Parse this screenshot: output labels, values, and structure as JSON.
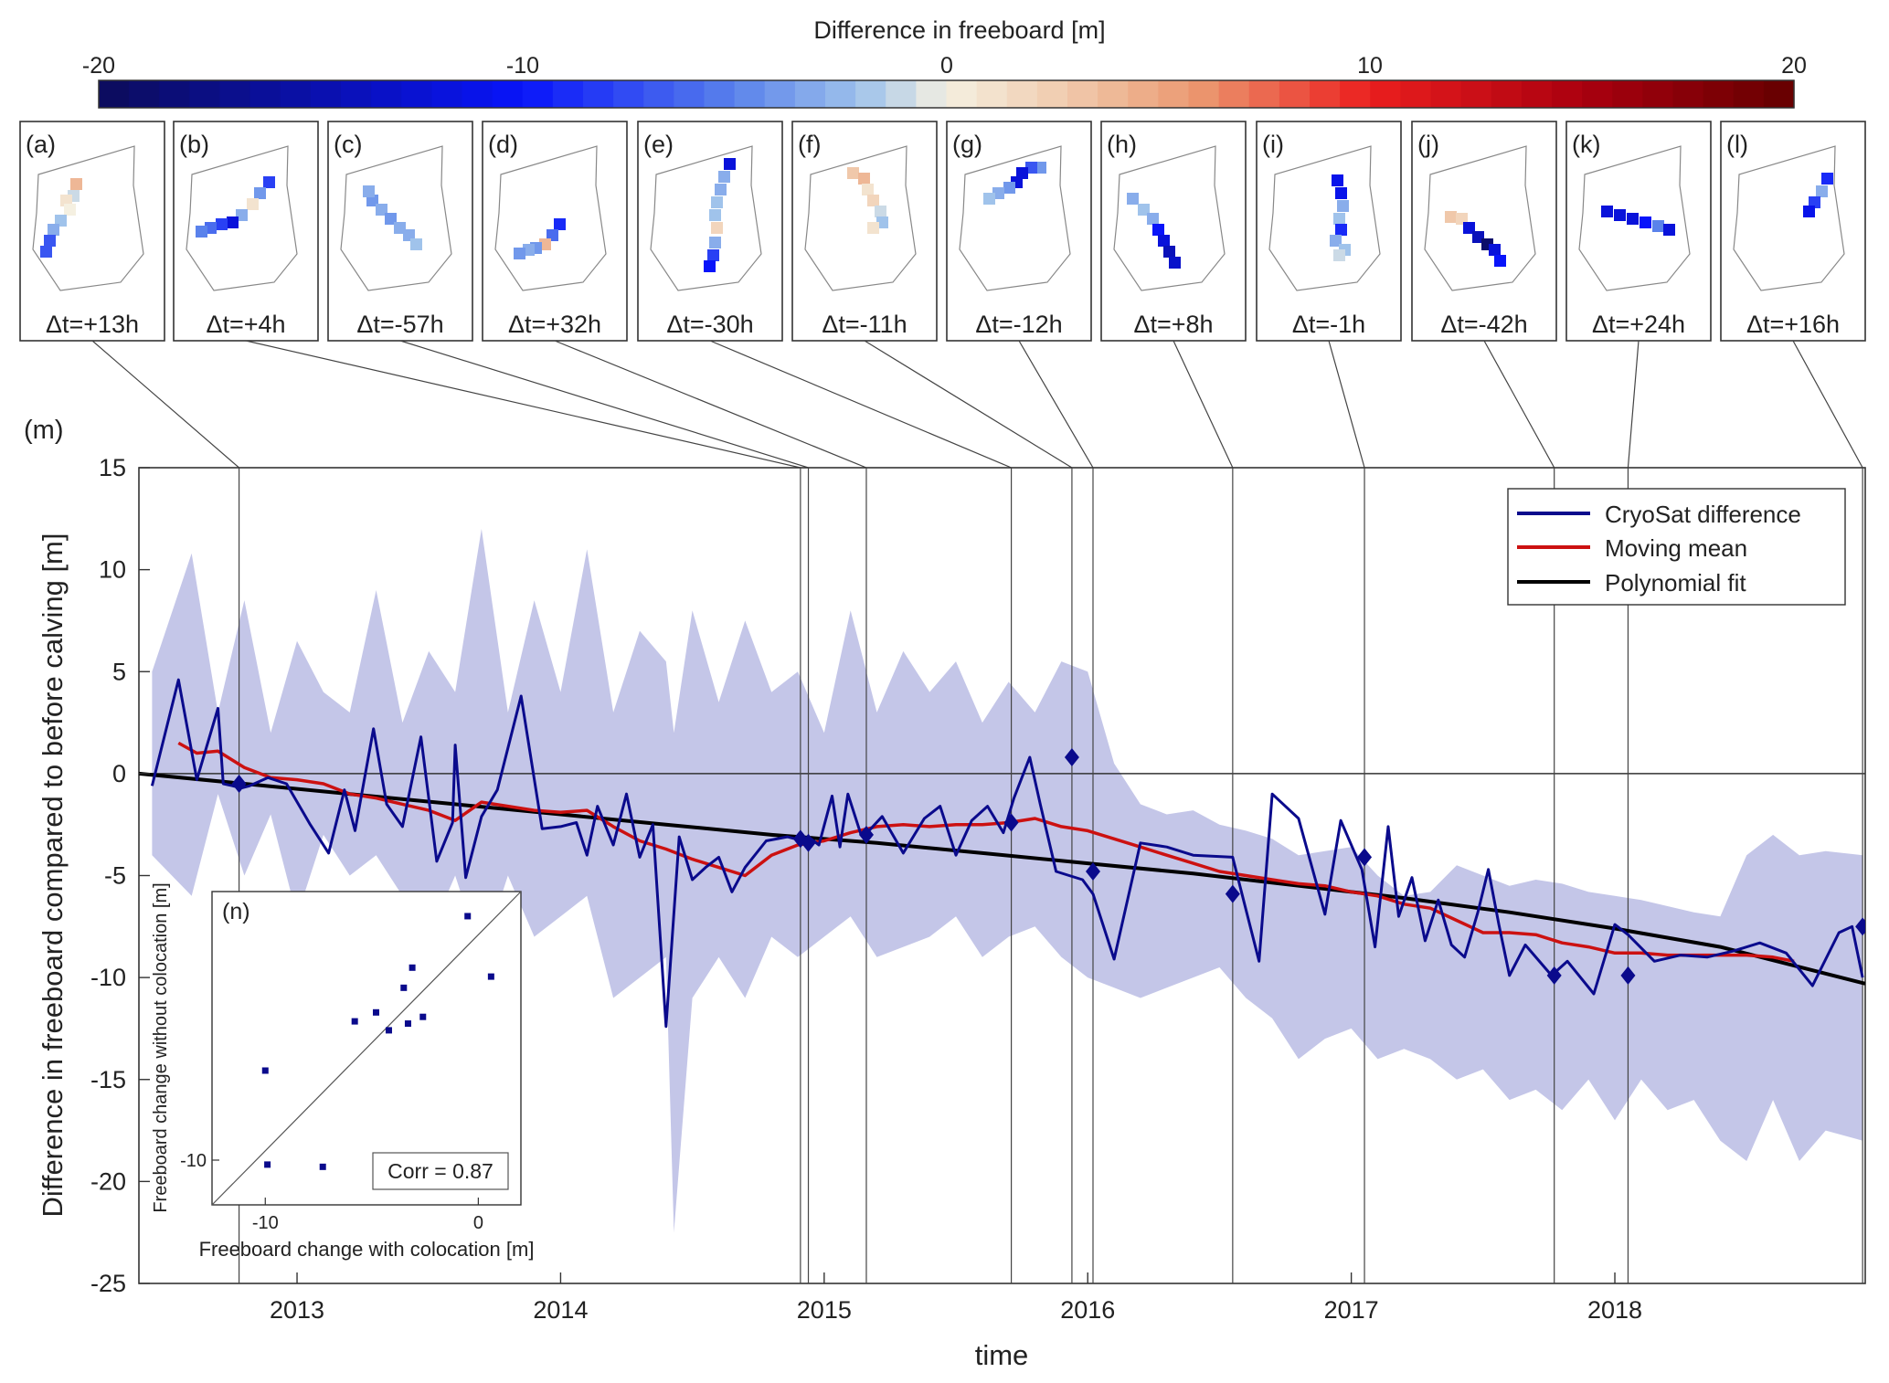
{
  "colorbar": {
    "title": "Difference in freeboard  [m]",
    "ticks": [
      "-20",
      "-10",
      "0",
      "10",
      "20"
    ],
    "range": [
      -20,
      20
    ]
  },
  "panels": [
    {
      "label": "(a)",
      "dt": "Δt=+13h"
    },
    {
      "label": "(b)",
      "dt": "Δt=+4h"
    },
    {
      "label": "(c)",
      "dt": "Δt=-57h"
    },
    {
      "label": "(d)",
      "dt": "Δt=+32h"
    },
    {
      "label": "(e)",
      "dt": "Δt=-30h"
    },
    {
      "label": "(f)",
      "dt": "Δt=-11h"
    },
    {
      "label": "(g)",
      "dt": "Δt=-12h"
    },
    {
      "label": "(h)",
      "dt": "Δt=+8h"
    },
    {
      "label": "(i)",
      "dt": "Δt=-1h"
    },
    {
      "label": "(j)",
      "dt": "Δt=-42h"
    },
    {
      "label": "(k)",
      "dt": "Δt=+24h"
    },
    {
      "label": "(l)",
      "dt": "Δt=+16h"
    }
  ],
  "chart_data": [
    {
      "type": "line",
      "panel_label": "(m)",
      "xlabel": "time",
      "ylabel": "Difference in freeboard compared to before calving [m]",
      "xlim": [
        2012.4,
        2018.95
      ],
      "ylim": [
        -25,
        15
      ],
      "xticks": [
        "2013",
        "2014",
        "2015",
        "2016",
        "2017",
        "2018"
      ],
      "yticks": [
        "15",
        "10",
        "5",
        "0",
        "-5",
        "-10",
        "-15",
        "-20",
        "-25"
      ],
      "legend_position": "top-right",
      "colors": {
        "cryosat": "#0a0a8c",
        "moving_mean": "#cc1111",
        "poly": "#000000",
        "band": "#c4c6e8"
      },
      "series": [
        {
          "name": "CryoSat difference",
          "x": [
            2012.45,
            2012.55,
            2012.62,
            2012.7,
            2012.72,
            2012.79,
            2012.82,
            2012.89,
            2012.96,
            2013.05,
            2013.12,
            2013.18,
            2013.22,
            2013.29,
            2013.34,
            2013.4,
            2013.47,
            2013.53,
            2013.59,
            2013.6,
            2013.64,
            2013.7,
            2013.76,
            2013.85,
            2013.93,
            2014.0,
            2014.06,
            2014.1,
            2014.14,
            2014.2,
            2014.25,
            2014.3,
            2014.35,
            2014.4,
            2014.45,
            2014.5,
            2014.55,
            2014.6,
            2014.65,
            2014.7,
            2014.78,
            2014.86,
            2014.92,
            2014.95,
            2014.98,
            2015.03,
            2015.06,
            2015.09,
            2015.14,
            2015.17,
            2015.22,
            2015.3,
            2015.38,
            2015.44,
            2015.5,
            2015.56,
            2015.62,
            2015.68,
            2015.72,
            2015.78,
            2015.82,
            2015.88,
            2015.93,
            2015.98,
            2016.02,
            2016.1,
            2016.2,
            2016.3,
            2016.4,
            2016.55,
            2016.65,
            2016.7,
            2016.8,
            2016.9,
            2016.96,
            2017.04,
            2017.09,
            2017.14,
            2017.18,
            2017.23,
            2017.28,
            2017.33,
            2017.38,
            2017.43,
            2017.48,
            2017.52,
            2017.56,
            2017.6,
            2017.66,
            2017.76,
            2017.82,
            2017.92,
            2018.0,
            2018.05,
            2018.15,
            2018.25,
            2018.35,
            2018.45,
            2018.55,
            2018.65,
            2018.75,
            2018.85,
            2018.9,
            2018.94
          ],
          "y": [
            -0.6,
            4.6,
            -0.3,
            3.2,
            -0.5,
            -0.7,
            -0.6,
            -0.2,
            -0.5,
            -2.5,
            -3.9,
            -0.8,
            -2.8,
            2.2,
            -1.5,
            -2.6,
            1.8,
            -4.3,
            -2.4,
            1.4,
            -5.1,
            -2.1,
            -0.8,
            3.8,
            -2.7,
            -2.6,
            -2.4,
            -4.0,
            -1.6,
            -3.5,
            -1.0,
            -4.1,
            -2.5,
            -12.4,
            -3.1,
            -5.2,
            -4.6,
            -4.1,
            -5.8,
            -4.6,
            -3.3,
            -3.1,
            -3.3,
            -3.2,
            -3.5,
            -1.1,
            -3.6,
            -1.0,
            -3.0,
            -2.8,
            -2.1,
            -3.9,
            -2.2,
            -1.6,
            -4.0,
            -2.3,
            -1.6,
            -2.9,
            -1.2,
            0.8,
            -1.5,
            -4.8,
            -5.0,
            -5.2,
            -5.9,
            -9.1,
            -3.4,
            -3.6,
            -4.0,
            -4.1,
            -9.2,
            -1.0,
            -2.2,
            -6.9,
            -2.3,
            -4.7,
            -8.5,
            -2.6,
            -7.0,
            -5.1,
            -8.2,
            -6.2,
            -8.4,
            -9.0,
            -6.8,
            -4.7,
            -7.4,
            -9.9,
            -8.4,
            -9.9,
            -9.2,
            -10.8,
            -7.4,
            -7.9,
            -9.2,
            -8.9,
            -9.0,
            -8.7,
            -8.3,
            -8.8,
            -10.4,
            -7.8,
            -7.5,
            -10.0
          ]
        },
        {
          "name": "Moving mean",
          "x": [
            2012.55,
            2012.62,
            2012.7,
            2012.8,
            2012.9,
            2013.0,
            2013.1,
            2013.2,
            2013.3,
            2013.4,
            2013.5,
            2013.6,
            2013.7,
            2013.8,
            2013.9,
            2014.0,
            2014.1,
            2014.2,
            2014.3,
            2014.4,
            2014.5,
            2014.6,
            2014.7,
            2014.8,
            2014.9,
            2015.0,
            2015.1,
            2015.2,
            2015.3,
            2015.4,
            2015.5,
            2015.6,
            2015.7,
            2015.8,
            2015.9,
            2016.0,
            2016.1,
            2016.2,
            2016.3,
            2016.4,
            2016.5,
            2016.6,
            2016.7,
            2016.8,
            2016.9,
            2017.0,
            2017.1,
            2017.2,
            2017.3,
            2017.4,
            2017.5,
            2017.6,
            2017.7,
            2017.8,
            2017.9,
            2018.0,
            2018.1,
            2018.2,
            2018.3,
            2018.4,
            2018.5,
            2018.6,
            2018.68
          ],
          "y": [
            1.5,
            1.0,
            1.1,
            0.3,
            -0.2,
            -0.3,
            -0.5,
            -1.0,
            -1.2,
            -1.5,
            -1.8,
            -2.3,
            -1.4,
            -1.6,
            -1.8,
            -1.9,
            -1.8,
            -2.6,
            -3.3,
            -3.7,
            -4.2,
            -4.6,
            -5.0,
            -4.0,
            -3.5,
            -3.3,
            -2.9,
            -2.6,
            -2.5,
            -2.6,
            -2.5,
            -2.5,
            -2.4,
            -2.2,
            -2.6,
            -2.8,
            -3.2,
            -3.6,
            -4.0,
            -4.4,
            -4.8,
            -5.0,
            -5.2,
            -5.4,
            -5.5,
            -5.8,
            -6.0,
            -6.4,
            -6.6,
            -7.2,
            -7.8,
            -7.8,
            -7.9,
            -8.3,
            -8.5,
            -8.8,
            -8.8,
            -8.9,
            -8.9,
            -8.9,
            -8.9,
            -9.0,
            -9.2
          ]
        },
        {
          "name": "Polynomial fit",
          "x": [
            2012.4,
            2012.8,
            2013.2,
            2013.6,
            2014.0,
            2014.4,
            2014.8,
            2015.2,
            2015.6,
            2016.0,
            2016.4,
            2016.8,
            2017.2,
            2017.6,
            2018.0,
            2018.4,
            2018.95
          ],
          "y": [
            0.0,
            -0.5,
            -1.0,
            -1.5,
            -2.0,
            -2.5,
            -3.0,
            -3.4,
            -3.9,
            -4.4,
            -4.9,
            -5.5,
            -6.1,
            -6.8,
            -7.6,
            -8.5,
            -10.3
          ]
        }
      ],
      "band": {
        "x": [
          2012.45,
          2012.6,
          2012.7,
          2012.8,
          2012.9,
          2013.0,
          2013.1,
          2013.2,
          2013.3,
          2013.4,
          2013.5,
          2013.6,
          2013.7,
          2013.8,
          2013.9,
          2014.0,
          2014.1,
          2014.2,
          2014.3,
          2014.4,
          2014.43,
          2014.5,
          2014.6,
          2014.7,
          2014.8,
          2014.9,
          2015.0,
          2015.1,
          2015.2,
          2015.3,
          2015.4,
          2015.5,
          2015.6,
          2015.7,
          2015.8,
          2015.9,
          2016.0,
          2016.1,
          2016.2,
          2016.3,
          2016.4,
          2016.5,
          2016.6,
          2016.7,
          2016.8,
          2016.9,
          2017.0,
          2017.1,
          2017.2,
          2017.3,
          2017.4,
          2017.5,
          2017.6,
          2017.7,
          2017.8,
          2017.9,
          2018.0,
          2018.1,
          2018.2,
          2018.3,
          2018.4,
          2018.5,
          2018.6,
          2018.7,
          2018.8,
          2018.94
        ],
        "upper": [
          5,
          10.8,
          3,
          8.5,
          2,
          6.5,
          4,
          3,
          9,
          2.5,
          6,
          4,
          12,
          3,
          8.5,
          4,
          11,
          3,
          7,
          5.5,
          2,
          8,
          3.5,
          7.5,
          4,
          5,
          2,
          8,
          3,
          6,
          4,
          5.5,
          2.5,
          4.5,
          3,
          5.5,
          5,
          0.5,
          -1.5,
          -2,
          -1.8,
          -2.5,
          -2.8,
          -3.2,
          -4,
          -3.8,
          -3.6,
          -5,
          -6,
          -5.8,
          -4.5,
          -5,
          -5.5,
          -5.2,
          -5.4,
          -5.8,
          -6,
          -6.2,
          -6.5,
          -6.8,
          -7,
          -4,
          -3,
          -4,
          -3.8,
          -4
        ],
        "lower": [
          -4,
          -6,
          -1,
          -5,
          -2,
          -7,
          -3,
          -5,
          -4,
          -6,
          -8,
          -5,
          -9,
          -5,
          -8,
          -7,
          -6,
          -11,
          -10,
          -9,
          -22.5,
          -11,
          -9,
          -11,
          -8,
          -9,
          -8,
          -7,
          -9,
          -8.5,
          -8,
          -7,
          -9,
          -8,
          -7.5,
          -9,
          -10,
          -10.5,
          -11,
          -10.5,
          -10,
          -9.5,
          -11,
          -12,
          -14,
          -13,
          -12.5,
          -14,
          -13.5,
          -14,
          -15,
          -14.5,
          -16,
          -15.5,
          -16.5,
          -15,
          -17,
          -15,
          -16.5,
          -16,
          -18,
          -19,
          -16,
          -19,
          -17.5,
          -18
        ]
      },
      "markers": {
        "x": [
          2012.78,
          2014.91,
          2014.94,
          2015.16,
          2015.71,
          2015.94,
          2016.02,
          2016.55,
          2017.05,
          2017.77,
          2018.05,
          2018.94
        ],
        "y": [
          -0.5,
          -3.2,
          -3.4,
          -3.0,
          -2.4,
          0.8,
          -4.8,
          -5.9,
          -4.1,
          -9.9,
          -9.9,
          -7.5
        ]
      }
    },
    {
      "type": "scatter",
      "panel_label": "(n)",
      "xlabel": "Freeboard change with colocation [m]",
      "ylabel": "Freeboard change without colocation [m]",
      "xlim": [
        -12.5,
        2
      ],
      "ylim": [
        -12,
        2
      ],
      "xticks": [
        "-10",
        "0"
      ],
      "yticks": [
        "-10"
      ],
      "annotation": "Corr = 0.87",
      "x": [
        -10.0,
        -9.9,
        -7.3,
        -5.8,
        -4.8,
        -4.2,
        -3.5,
        -3.3,
        -3.1,
        -2.6,
        -0.5,
        0.6
      ],
      "y": [
        -6.0,
        -10.2,
        -10.3,
        -3.8,
        -3.4,
        -4.2,
        -2.3,
        -3.9,
        -1.4,
        -3.6,
        0.9,
        -1.8
      ]
    }
  ]
}
